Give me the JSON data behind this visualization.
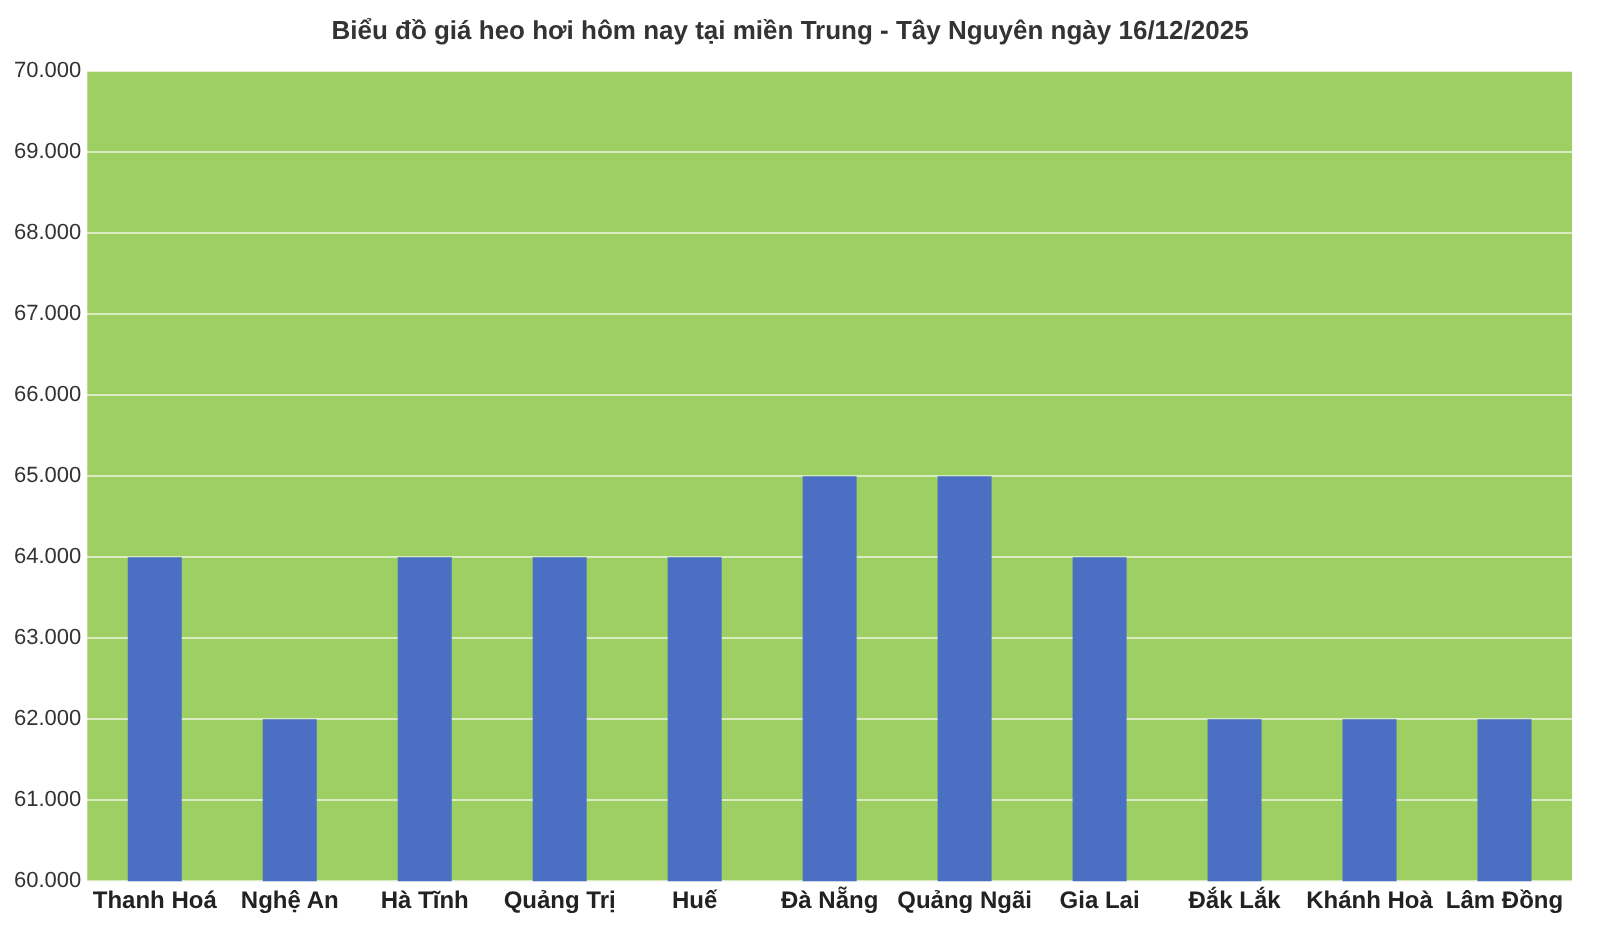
{
  "chart_data": {
    "type": "bar",
    "title": "Biểu đồ giá heo hơi hôm nay tại miền Trung - Tây Nguyên ngày 16/12/2025",
    "categories": [
      "Thanh Hoá",
      "Nghệ An",
      "Hà Tĩnh",
      "Quảng Trị",
      "Huế",
      "Đà Nẵng",
      "Quảng Ngãi",
      "Gia Lai",
      "Đắk Lắk",
      "Khánh Hoà",
      "Lâm Đồng"
    ],
    "values": [
      64000,
      62000,
      64000,
      64000,
      64000,
      65000,
      65000,
      64000,
      62000,
      62000,
      62000
    ],
    "color": "#4a6fc3",
    "ylim": [
      60000,
      70000
    ],
    "yticks": [
      {
        "value": 60000,
        "label": "60.000"
      },
      {
        "value": 61000,
        "label": "61.000"
      },
      {
        "value": 62000,
        "label": "62.000"
      },
      {
        "value": 63000,
        "label": "63.000"
      },
      {
        "value": 64000,
        "label": "64.000"
      },
      {
        "value": 65000,
        "label": "65.000"
      },
      {
        "value": 66000,
        "label": "66.000"
      },
      {
        "value": 67000,
        "label": "67.000"
      },
      {
        "value": 68000,
        "label": "68.000"
      },
      {
        "value": 69000,
        "label": "69.000"
      },
      {
        "value": 70000,
        "label": "70.000"
      }
    ],
    "grid": "y"
  }
}
